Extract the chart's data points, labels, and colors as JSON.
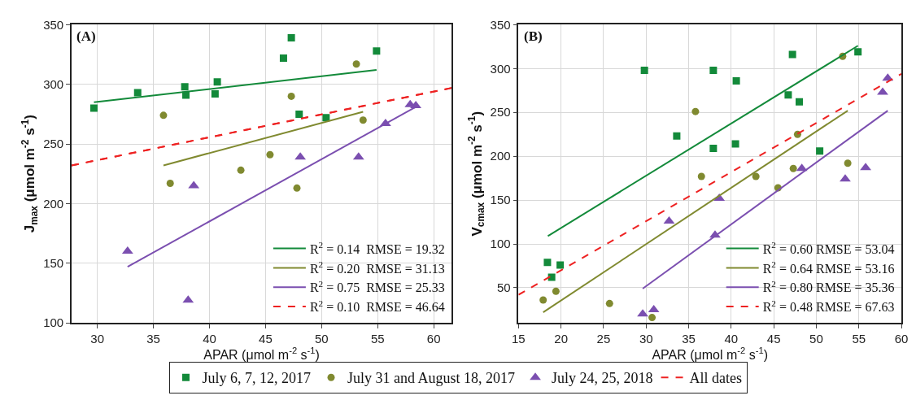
{
  "chart_data": [
    {
      "type": "scatter",
      "title": "(A)",
      "xlabel": "APAR (μmol m$^{-2}$ s$^{-1}$)",
      "ylabel": "J$_{max}$ (μmol m$^{-2}$ s$^{-1}$)",
      "xlim": [
        27.7,
        61.6
      ],
      "ylim": [
        100,
        350
      ],
      "xticks": [
        30,
        35,
        40,
        45,
        50,
        55,
        60
      ],
      "yticks": [
        100,
        150,
        200,
        250,
        300,
        350
      ],
      "grid": true,
      "legend": "bottom right",
      "series": [
        {
          "name": "July 6, 7, 12, 2017",
          "type": "scatter",
          "marker": "square",
          "color": "#138a3a",
          "x": [
            29.7,
            33.6,
            37.8,
            37.9,
            40.5,
            40.7,
            46.6,
            47.3,
            48.0,
            50.4,
            54.9
          ],
          "values": [
            280,
            293,
            298,
            291,
            292,
            302,
            322,
            339,
            275,
            272,
            328
          ]
        },
        {
          "name": "July 31 and August 18, 2017",
          "type": "scatter",
          "marker": "circle",
          "color": "#808a30",
          "x": [
            35.9,
            36.5,
            42.8,
            45.4,
            47.3,
            47.8,
            53.1,
            53.7
          ],
          "values": [
            274,
            217,
            228,
            241,
            290,
            213,
            317,
            270
          ]
        },
        {
          "name": "July 24, 25, 2018",
          "type": "scatter",
          "marker": "triangle",
          "color": "#7b4fb0",
          "x": [
            32.7,
            38.1,
            38.6,
            48.1,
            53.3,
            55.7,
            57.9,
            58.4
          ],
          "values": [
            160,
            119,
            215,
            239,
            239,
            267,
            283,
            282
          ]
        },
        {
          "name": "All dates",
          "type": "line",
          "line_style": "dashed",
          "color": "#ee2222",
          "x": [
            27.7,
            61.6
          ],
          "values": [
            232,
            297
          ]
        },
        {
          "name": "R$^{2}$ = 0.14  RMSE = 19.32",
          "type": "line",
          "line_style": "solid",
          "color": "#138a3a",
          "x": [
            29.7,
            54.9
          ],
          "values": [
            285,
            312
          ]
        },
        {
          "name": "R$^{2}$ = 0.20  RMSE = 31.13",
          "type": "line",
          "line_style": "solid",
          "color": "#808a30",
          "x": [
            35.9,
            53.7
          ],
          "values": [
            232,
            277
          ]
        },
        {
          "name": "R$^{2}$ = 0.75  RMSE = 25.33",
          "type": "line",
          "line_style": "solid",
          "color": "#7b4fb0",
          "x": [
            32.7,
            58.4
          ],
          "values": [
            147,
            281
          ]
        },
        {
          "name": "R$^{2}$ = 0.10  RMSE = 46.64",
          "type": "line",
          "line_style": "dashed",
          "color": "#ee2222",
          "x": [
            27.7,
            61.6
          ],
          "values": [
            232,
            297
          ]
        }
      ]
    },
    {
      "type": "scatter",
      "title": "(B)",
      "xlabel": "APAR (μmol m$^{-2}$ s$^{-1}$)",
      "ylabel": "V$_{cmax}$ (μmol m$^{-2}$ s$^{-1}$)",
      "xlim": [
        15,
        60
      ],
      "ylim": [
        10,
        350
      ],
      "xticks": [
        15,
        20,
        25,
        30,
        35,
        40,
        45,
        50,
        55,
        60
      ],
      "yticks": [
        50,
        100,
        150,
        200,
        250,
        300,
        350
      ],
      "grid": true,
      "legend": "bottom right",
      "series": [
        {
          "type": "scatter",
          "marker": "square",
          "color": "#138a3a",
          "x": [
            18.4,
            18.9,
            19.9,
            29.8,
            33.6,
            37.9,
            37.9,
            40.6,
            40.5,
            46.7,
            47.2,
            48.0,
            50.4,
            54.9
          ],
          "values": [
            79,
            62,
            76,
            298,
            223,
            298,
            209,
            286,
            214,
            270,
            316,
            262,
            206,
            319
          ]
        },
        {
          "type": "scatter",
          "marker": "circle",
          "color": "#808a30",
          "x": [
            17.9,
            19.4,
            25.7,
            30.7,
            35.8,
            36.5,
            42.9,
            45.5,
            47.3,
            47.8,
            53.1,
            53.7
          ],
          "values": [
            36,
            46,
            32,
            16,
            251,
            177,
            177,
            164,
            186,
            225,
            314,
            192
          ]
        },
        {
          "type": "scatter",
          "marker": "triangle",
          "color": "#7b4fb0",
          "x": [
            29.6,
            30.9,
            32.7,
            38.1,
            38.6,
            48.3,
            53.4,
            55.8,
            57.8,
            58.4
          ],
          "values": [
            20,
            25,
            126,
            110,
            152,
            186,
            174,
            187,
            273,
            289
          ]
        },
        {
          "name": "R$^{2}$ = 0.60 RMSE = 53.04",
          "type": "line",
          "line_style": "solid",
          "color": "#138a3a",
          "x": [
            18.45,
            54.9
          ],
          "values": [
            109,
            326
          ]
        },
        {
          "name": "R$^{2}$ = 0.64 RMSE = 53.16",
          "type": "line",
          "line_style": "solid",
          "color": "#808a30",
          "x": [
            17.9,
            53.7
          ],
          "values": [
            22,
            252
          ]
        },
        {
          "name": "R$^{2}$ = 0.80 RMSE = 35.36",
          "type": "line",
          "line_style": "solid",
          "color": "#7b4fb0",
          "x": [
            29.6,
            58.4
          ],
          "values": [
            49,
            252
          ]
        },
        {
          "name": "R$^{2}$ = 0.48 RMSE = 67.63",
          "type": "line",
          "line_style": "dashed",
          "color": "#ee2222",
          "x": [
            15,
            60
          ],
          "values": [
            42,
            294
          ]
        }
      ]
    }
  ]
}
